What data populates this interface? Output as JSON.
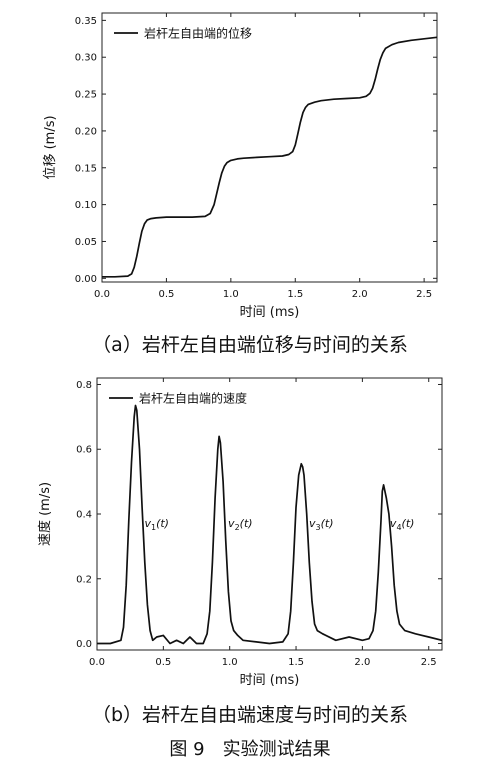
{
  "chart_data": [
    {
      "type": "line",
      "xlabel": "时间 (ms)",
      "ylabel": "位移 (m/s)",
      "xlim": [
        0,
        2.6
      ],
      "ylim": [
        -0.005,
        0.36
      ],
      "xticks": [
        "0.0",
        "0.5",
        "1.0",
        "1.5",
        "2.0",
        "2.5"
      ],
      "yticks": [
        "0.00",
        "0.05",
        "0.10",
        "0.15",
        "0.20",
        "0.25",
        "0.30",
        "0.35"
      ],
      "legend": "top-left",
      "series": [
        {
          "name": "岩杆左自由端的位移",
          "x": [
            0.0,
            0.1,
            0.2,
            0.23,
            0.25,
            0.27,
            0.29,
            0.31,
            0.33,
            0.35,
            0.38,
            0.42,
            0.5,
            0.6,
            0.7,
            0.8,
            0.84,
            0.87,
            0.89,
            0.91,
            0.93,
            0.95,
            0.97,
            1.0,
            1.05,
            1.1,
            1.2,
            1.3,
            1.4,
            1.45,
            1.48,
            1.5,
            1.52,
            1.54,
            1.56,
            1.58,
            1.6,
            1.65,
            1.7,
            1.8,
            1.9,
            2.0,
            2.05,
            2.08,
            2.1,
            2.12,
            2.14,
            2.16,
            2.18,
            2.2,
            2.25,
            2.3,
            2.4,
            2.5,
            2.6
          ],
          "values": [
            0.002,
            0.002,
            0.003,
            0.006,
            0.015,
            0.03,
            0.048,
            0.064,
            0.074,
            0.079,
            0.081,
            0.082,
            0.083,
            0.083,
            0.083,
            0.084,
            0.088,
            0.1,
            0.115,
            0.13,
            0.143,
            0.152,
            0.157,
            0.16,
            0.162,
            0.163,
            0.164,
            0.165,
            0.166,
            0.168,
            0.172,
            0.181,
            0.196,
            0.212,
            0.225,
            0.232,
            0.236,
            0.239,
            0.241,
            0.243,
            0.244,
            0.245,
            0.247,
            0.251,
            0.258,
            0.27,
            0.284,
            0.297,
            0.306,
            0.312,
            0.317,
            0.32,
            0.323,
            0.325,
            0.327
          ]
        }
      ]
    },
    {
      "type": "line",
      "xlabel": "时间 (ms)",
      "ylabel": "速度 (m/s)",
      "xlim": [
        0,
        2.6
      ],
      "ylim": [
        -0.02,
        0.82
      ],
      "xticks": [
        "0.0",
        "0.5",
        "1.0",
        "1.5",
        "2.0",
        "2.5"
      ],
      "yticks": [
        "0.0",
        "0.2",
        "0.4",
        "0.6",
        "0.8"
      ],
      "legend": "top-left",
      "annotations": [
        {
          "prefix": "v",
          "sub": "1",
          "suffix": "(t)",
          "x": 0.45,
          "y": 0.36
        },
        {
          "prefix": "v",
          "sub": "2",
          "suffix": "(t)",
          "x": 1.08,
          "y": 0.36
        },
        {
          "prefix": "v",
          "sub": "3",
          "suffix": "(t)",
          "x": 1.69,
          "y": 0.36
        },
        {
          "prefix": "v",
          "sub": "4",
          "suffix": "(t)",
          "x": 2.3,
          "y": 0.36
        }
      ],
      "series": [
        {
          "name": "岩杆左自由端的速度",
          "x": [
            0.0,
            0.1,
            0.18,
            0.2,
            0.22,
            0.24,
            0.26,
            0.28,
            0.29,
            0.3,
            0.32,
            0.34,
            0.36,
            0.38,
            0.4,
            0.42,
            0.45,
            0.5,
            0.55,
            0.6,
            0.65,
            0.7,
            0.75,
            0.8,
            0.83,
            0.85,
            0.87,
            0.89,
            0.91,
            0.92,
            0.93,
            0.95,
            0.97,
            0.99,
            1.01,
            1.03,
            1.06,
            1.1,
            1.2,
            1.3,
            1.4,
            1.44,
            1.46,
            1.48,
            1.5,
            1.52,
            1.54,
            1.55,
            1.56,
            1.58,
            1.6,
            1.62,
            1.64,
            1.66,
            1.7,
            1.8,
            1.9,
            2.0,
            2.05,
            2.08,
            2.1,
            2.12,
            2.14,
            2.15,
            2.16,
            2.18,
            2.2,
            2.22,
            2.24,
            2.26,
            2.28,
            2.32,
            2.4,
            2.5,
            2.6
          ],
          "values": [
            0.0,
            0.0,
            0.01,
            0.05,
            0.18,
            0.38,
            0.56,
            0.7,
            0.735,
            0.72,
            0.6,
            0.42,
            0.25,
            0.12,
            0.04,
            0.01,
            0.02,
            0.025,
            0.0,
            0.01,
            0.0,
            0.02,
            0.0,
            0.0,
            0.03,
            0.1,
            0.25,
            0.45,
            0.6,
            0.64,
            0.62,
            0.5,
            0.32,
            0.16,
            0.07,
            0.04,
            0.025,
            0.01,
            0.005,
            0.0,
            0.005,
            0.03,
            0.1,
            0.25,
            0.42,
            0.52,
            0.555,
            0.545,
            0.52,
            0.4,
            0.25,
            0.13,
            0.06,
            0.04,
            0.03,
            0.01,
            0.02,
            0.01,
            0.015,
            0.04,
            0.1,
            0.22,
            0.38,
            0.47,
            0.49,
            0.45,
            0.4,
            0.3,
            0.18,
            0.1,
            0.06,
            0.04,
            0.03,
            0.02,
            0.01
          ]
        }
      ]
    }
  ],
  "captions": {
    "a": "（a）岩杆左自由端位移与时间的关系",
    "b": "（b）岩杆左自由端速度与时间的关系",
    "figure": "图 9　实验测试结果"
  }
}
